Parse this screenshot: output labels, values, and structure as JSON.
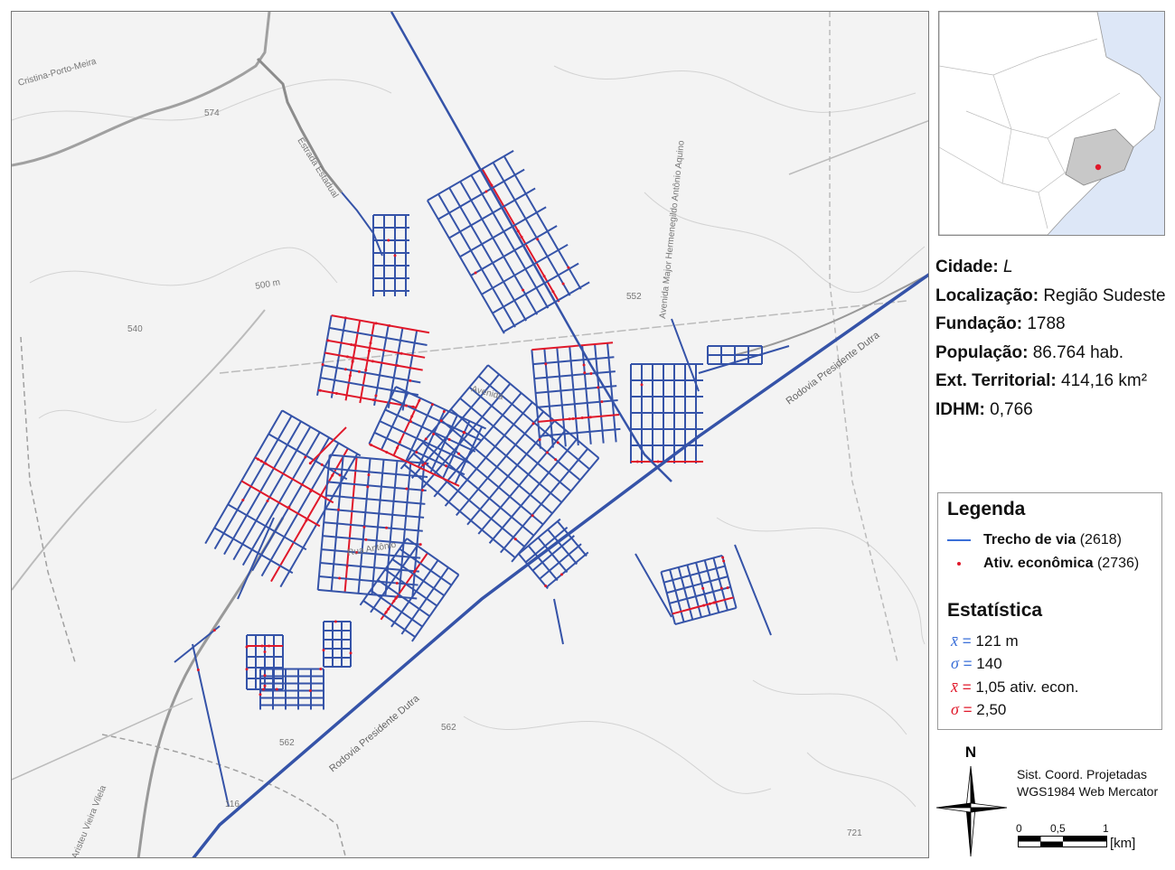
{
  "map": {
    "labels": {
      "road_cristina": "Cristina-Porto-Meira",
      "road_estadual": "Estrada Estadual",
      "avenida_major": "Avenida Major Hermenegildo Antônio Aquino",
      "rodovia_dutra_1": "Rodovia Presidente Dutra",
      "rodovia_dutra_2": "Rodovia Presidente Dutra",
      "aristeu": "Aristeu Vieira Vilela",
      "avenida": "Avenida",
      "rua": "Rua Antônio",
      "elev_574": "574",
      "elev_540": "540",
      "elev_500": "500 m",
      "elev_552": "552",
      "elev_562a": "562",
      "elev_562b": "562",
      "elev_721": "721",
      "shield_116": "116"
    },
    "colors": {
      "street": "#3553a8",
      "activity": "#e0182a",
      "road": "#9a9a9a",
      "background": "#f3f3f3"
    }
  },
  "inset": {
    "colors": {
      "ocean": "#dde7f7",
      "land": "#ffffff",
      "region": "#c8c8c8",
      "city": "#e0182a"
    }
  },
  "info": {
    "cidade_label": "Cidade:",
    "cidade_value": "L",
    "localizacao_label": "Localização:",
    "localizacao_value": "Região Sudeste",
    "fundacao_label": "Fundação:",
    "fundacao_value": "1788",
    "populacao_label": "População:",
    "populacao_value": "86.764 hab.",
    "ext_label": "Ext. Territorial:",
    "ext_value": "414,16 km²",
    "idhm_label": "IDHM:",
    "idhm_value": "0,766"
  },
  "legend": {
    "title": "Legenda",
    "items": [
      {
        "label": "Trecho de via",
        "count": "(2618)",
        "color": "#3a6fd8",
        "symbol": "line"
      },
      {
        "label": "Ativ. econômica",
        "count": "(2736)",
        "color": "#e0182a",
        "symbol": "dot"
      }
    ],
    "stats_title": "Estatística",
    "stats": [
      {
        "symbol": "x̄",
        "eq": "=",
        "value": "121 m",
        "color": "#3a6fd8"
      },
      {
        "symbol": "σ",
        "eq": "=",
        "value": "140",
        "color": "#3a6fd8"
      },
      {
        "symbol": "x̄",
        "eq": "=",
        "value": "1,05 ativ. econ.",
        "color": "#e0182a"
      },
      {
        "symbol": "σ",
        "eq": "=",
        "value": "2,50",
        "color": "#e0182a"
      }
    ]
  },
  "coord_system": {
    "line1": "Sist. Coord. Projetadas",
    "line2": "WGS1984 Web Mercator"
  },
  "north_arrow": {
    "label": "N"
  },
  "scale_bar": {
    "ticks": [
      "0",
      "0,5",
      "1"
    ],
    "unit": "[km]"
  }
}
